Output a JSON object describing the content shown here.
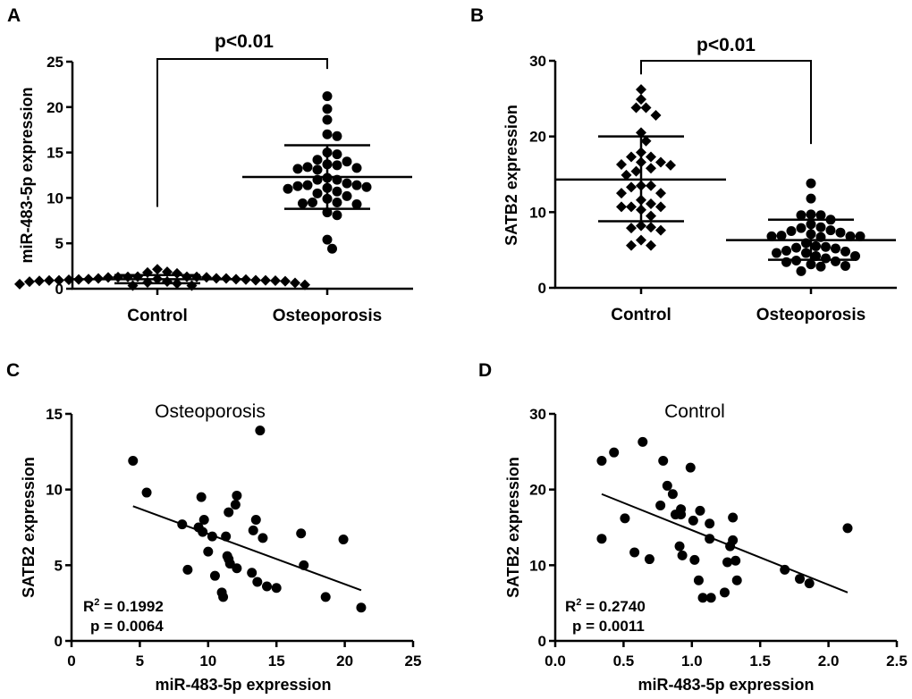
{
  "chart_data": [
    {
      "panel": "A",
      "type": "scatter",
      "title": "",
      "ylabel": "miR-483-5p expression",
      "xlabel": "",
      "ylim": [
        0,
        25
      ],
      "yticks": [
        "0",
        "5",
        "10",
        "15",
        "20",
        "25"
      ],
      "categories": [
        "Control",
        "Osteoporosis"
      ],
      "significance": "p<0.01",
      "series": [
        {
          "name": "Control",
          "marker": "diamond",
          "mean": 1.05,
          "sd_low": 0.6,
          "sd_high": 1.5,
          "values": [
            0.34,
            0.43,
            0.64,
            0.79,
            0.99,
            0.82,
            0.86,
            0.77,
            0.92,
            0.88,
            0.92,
            1.06,
            1.01,
            1.13,
            1.3,
            0.51,
            0.34,
            1.13,
            1.3,
            1.28,
            0.91,
            0.93,
            0.58,
            0.69,
            1.02,
            1.26,
            1.32,
            1.68,
            1.79,
            1.86,
            2.14,
            1.05,
            1.33,
            1.24,
            1.08,
            1.14
          ]
        },
        {
          "name": "Osteoporosis",
          "marker": "circle",
          "mean": 12.3,
          "sd_low": 8.8,
          "sd_high": 15.8,
          "values": [
            21.2,
            19.8,
            18.6,
            16.8,
            17.0,
            15.0,
            14.8,
            14.0,
            14.2,
            13.6,
            13.3,
            13.2,
            13.1,
            13.4,
            13.7,
            12.0,
            12.0,
            12.2,
            11.0,
            11.4,
            11.2,
            11.3,
            11.4,
            11.1,
            11.6,
            10.2,
            10.7,
            9.9,
            10.5,
            9.4,
            9.5,
            9.3,
            9.5,
            8.4,
            8.1,
            5.4,
            4.4
          ]
        }
      ]
    },
    {
      "panel": "B",
      "type": "scatter",
      "title": "",
      "ylabel": "SATB2 expression",
      "xlabel": "",
      "ylim": [
        0,
        30
      ],
      "yticks": [
        "0",
        "10",
        "20",
        "30"
      ],
      "categories": [
        "Control",
        "Osteoporosis"
      ],
      "significance": "p<0.01",
      "series": [
        {
          "name": "Control",
          "marker": "diamond",
          "mean": 14.3,
          "sd_low": 8.8,
          "sd_high": 20.0,
          "values": [
            26.2,
            24.9,
            23.8,
            23.8,
            22.8,
            20.5,
            19.4,
            17.9,
            16.6,
            16.3,
            17.3,
            17.3,
            15.8,
            16.2,
            16.6,
            14.9,
            15.4,
            13.3,
            13.5,
            13.5,
            12.5,
            12.5,
            11.6,
            10.7,
            10.7,
            10.7,
            11.1,
            10.3,
            9.5,
            8.2,
            7.9,
            7.6,
            8.0,
            6.3,
            5.6,
            5.6
          ]
        },
        {
          "name": "Osteoporosis",
          "marker": "circle",
          "mean": 6.3,
          "sd_low": 3.7,
          "sd_high": 9.0,
          "values": [
            13.8,
            11.8,
            9.6,
            9.0,
            9.6,
            9.7,
            8.4,
            8.0,
            7.6,
            7.3,
            6.9,
            6.8,
            6.8,
            6.8,
            7.1,
            7.5,
            7.9,
            5.9,
            5.4,
            4.9,
            4.6,
            4.2,
            4.2,
            4.6,
            4.8,
            5.2,
            5.5,
            5.3,
            3.6,
            3.4,
            2.9,
            2.2,
            2.8,
            3.1,
            3.5,
            3.9,
            6.7
          ]
        }
      ]
    },
    {
      "panel": "C",
      "type": "scatter",
      "title": "Osteoporosis",
      "xlabel": "miR-483-5p expression",
      "ylabel": "SATB2 expression",
      "xlim": [
        0,
        25
      ],
      "ylim": [
        0,
        15
      ],
      "xticks": [
        "0",
        "5",
        "10",
        "15",
        "20",
        "25"
      ],
      "yticks": [
        "0",
        "5",
        "10",
        "15"
      ],
      "r2_label": "R",
      "r2_sup": "2",
      "r2_value": " = 0.1992",
      "p_label": "p = 0.0064",
      "fit": {
        "x": [
          4.5,
          21.2
        ],
        "y": [
          8.9,
          3.35
        ]
      },
      "points": [
        [
          4.5,
          11.9
        ],
        [
          5.5,
          9.8
        ],
        [
          13.8,
          13.9
        ],
        [
          9.5,
          9.5
        ],
        [
          12.1,
          9.6
        ],
        [
          12.0,
          9.0
        ],
        [
          11.5,
          8.5
        ],
        [
          13.5,
          8.0
        ],
        [
          9.7,
          8.0
        ],
        [
          8.1,
          7.7
        ],
        [
          9.3,
          7.5
        ],
        [
          9.6,
          7.2
        ],
        [
          13.3,
          7.3
        ],
        [
          10.3,
          6.9
        ],
        [
          11.3,
          6.9
        ],
        [
          14.0,
          6.8
        ],
        [
          16.8,
          7.1
        ],
        [
          19.9,
          6.7
        ],
        [
          10.0,
          5.9
        ],
        [
          11.4,
          5.6
        ],
        [
          11.5,
          5.4
        ],
        [
          11.6,
          5.1
        ],
        [
          12.1,
          4.8
        ],
        [
          8.5,
          4.7
        ],
        [
          10.5,
          4.3
        ],
        [
          13.2,
          4.5
        ],
        [
          13.6,
          3.9
        ],
        [
          14.3,
          3.6
        ],
        [
          15.0,
          3.5
        ],
        [
          17.0,
          5.0
        ],
        [
          11.0,
          3.2
        ],
        [
          11.1,
          2.9
        ],
        [
          18.6,
          2.9
        ],
        [
          21.2,
          2.2
        ]
      ]
    },
    {
      "panel": "D",
      "type": "scatter",
      "title": "Control",
      "xlabel": "miR-483-5p expression",
      "ylabel": "SATB2 expression",
      "xlim": [
        0,
        2.5
      ],
      "ylim": [
        0,
        30
      ],
      "xticks": [
        "0.0",
        "0.5",
        "1.0",
        "1.5",
        "2.0",
        "2.5"
      ],
      "yticks": [
        "0",
        "10",
        "20",
        "30"
      ],
      "r2_label": "R",
      "r2_sup": "2",
      "r2_value": " = 0.2740",
      "p_label": "p = 0.0011",
      "fit": {
        "x": [
          0.34,
          2.14
        ],
        "y": [
          19.4,
          6.4
        ]
      },
      "points": [
        [
          0.34,
          23.8
        ],
        [
          0.43,
          24.9
        ],
        [
          0.64,
          26.3
        ],
        [
          0.79,
          23.8
        ],
        [
          0.99,
          22.9
        ],
        [
          0.82,
          20.5
        ],
        [
          0.86,
          19.4
        ],
        [
          0.77,
          17.9
        ],
        [
          0.92,
          17.4
        ],
        [
          0.88,
          16.7
        ],
        [
          0.92,
          16.7
        ],
        [
          1.06,
          17.2
        ],
        [
          1.01,
          15.9
        ],
        [
          1.13,
          15.5
        ],
        [
          1.3,
          16.3
        ],
        [
          0.51,
          16.2
        ],
        [
          0.34,
          13.5
        ],
        [
          1.13,
          13.5
        ],
        [
          1.3,
          13.3
        ],
        [
          1.28,
          12.5
        ],
        [
          0.91,
          12.5
        ],
        [
          0.93,
          11.3
        ],
        [
          0.58,
          11.7
        ],
        [
          0.69,
          10.8
        ],
        [
          1.02,
          10.7
        ],
        [
          1.26,
          10.4
        ],
        [
          1.32,
          10.6
        ],
        [
          1.68,
          9.4
        ],
        [
          1.79,
          8.2
        ],
        [
          1.86,
          7.6
        ],
        [
          2.14,
          14.9
        ],
        [
          1.05,
          8.0
        ],
        [
          1.33,
          8.0
        ],
        [
          1.24,
          6.4
        ],
        [
          1.08,
          5.7
        ],
        [
          1.14,
          5.7
        ]
      ]
    }
  ]
}
